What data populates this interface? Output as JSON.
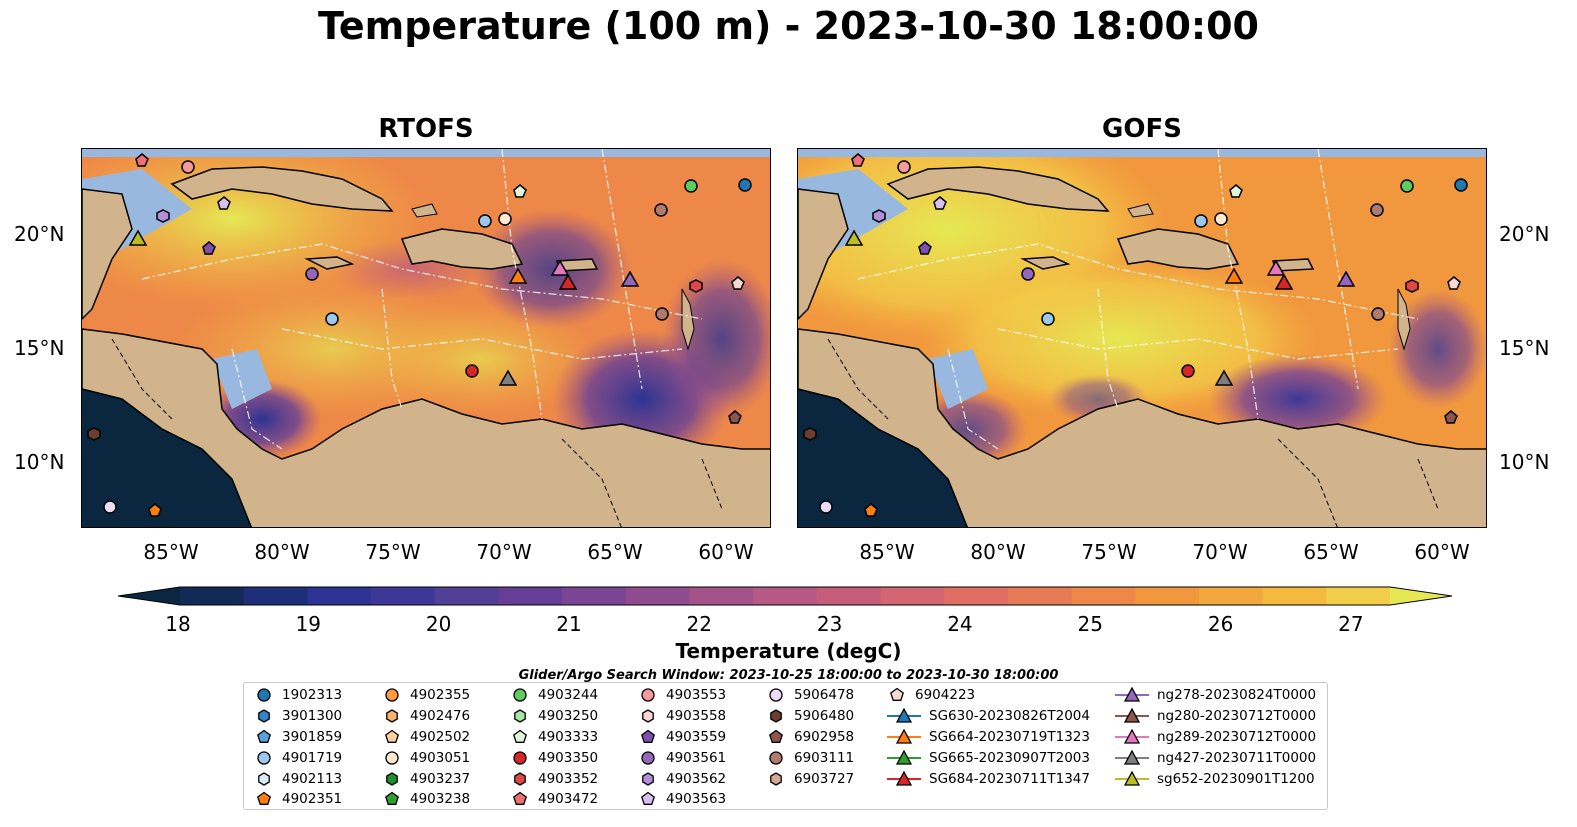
{
  "title": "Temperature (100 m) - 2023-10-30 18:00:00",
  "panels": [
    {
      "title": "RTOFS"
    },
    {
      "title": "GOFS"
    }
  ],
  "lat_labels": [
    "20°N",
    "15°N",
    "10°N"
  ],
  "lon_labels": [
    "85°W",
    "80°W",
    "75°W",
    "70°W",
    "65°W",
    "60°W"
  ],
  "colorbar": {
    "label": "Temperature (degC)",
    "ticks": [
      "18",
      "19",
      "20",
      "21",
      "22",
      "23",
      "24",
      "25",
      "26",
      "27"
    ],
    "colors": [
      "#0b2740",
      "#122a55",
      "#1e2e78",
      "#2c3392",
      "#3d3897",
      "#523f98",
      "#663e97",
      "#7a4593",
      "#8e4c8f",
      "#a3528a",
      "#b65984",
      "#c65e7b",
      "#d46671",
      "#e06e63",
      "#e77b55",
      "#ee8848",
      "#f1983f",
      "#f2a83c",
      "#f4ba3e",
      "#f3ce48",
      "#e6e853"
    ]
  },
  "search_window": "Glider/Argo Search Window: 2023-10-25 18:00:00 to 2023-10-30 18:00:00",
  "legend": {
    "columns": [
      [
        {
          "label": "1902313",
          "shape": "circle",
          "color": "#1f77b4"
        },
        {
          "label": "3901300",
          "shape": "hexagon",
          "color": "#2f86c8"
        },
        {
          "label": "3901859",
          "shape": "pentagon",
          "color": "#5aa0d6"
        },
        {
          "label": "4901719",
          "shape": "circle",
          "color": "#9cc8ee"
        },
        {
          "label": "4902113",
          "shape": "hexagon",
          "color": "#d8ecfa"
        },
        {
          "label": "4902351",
          "shape": "pentagon",
          "color": "#ff7f0e"
        }
      ],
      [
        {
          "label": "4902355",
          "shape": "circle",
          "color": "#ff9a3a"
        },
        {
          "label": "4902476",
          "shape": "hexagon",
          "color": "#ffb26a"
        },
        {
          "label": "4902502",
          "shape": "pentagon",
          "color": "#ffcfa0"
        },
        {
          "label": "4903051",
          "shape": "circle",
          "color": "#ffe9d0"
        },
        {
          "label": "4903237",
          "shape": "hexagon",
          "color": "#1e8f2a"
        },
        {
          "label": "4903238",
          "shape": "pentagon",
          "color": "#2ca02c"
        }
      ],
      [
        {
          "label": "4903244",
          "shape": "circle",
          "color": "#5fcc5f"
        },
        {
          "label": "4903250",
          "shape": "hexagon",
          "color": "#a6e6a0"
        },
        {
          "label": "4903333",
          "shape": "pentagon",
          "color": "#dff7d8"
        },
        {
          "label": "4903350",
          "shape": "circle",
          "color": "#d62728"
        },
        {
          "label": "4903352",
          "shape": "hexagon",
          "color": "#e04848"
        },
        {
          "label": "4903472",
          "shape": "pentagon",
          "color": "#ee7070"
        }
      ],
      [
        {
          "label": "4903553",
          "shape": "circle",
          "color": "#f59a9a"
        },
        {
          "label": "4903558",
          "shape": "hexagon",
          "color": "#fcd5d5"
        },
        {
          "label": "4903559",
          "shape": "pentagon",
          "color": "#7f4fb0"
        },
        {
          "label": "4903561",
          "shape": "circle",
          "color": "#9467bd"
        },
        {
          "label": "4903562",
          "shape": "hexagon",
          "color": "#b28fd8"
        },
        {
          "label": "4903563",
          "shape": "pentagon",
          "color": "#d8bff0"
        }
      ],
      [
        {
          "label": "5906478",
          "shape": "circle",
          "color": "#ecdcf8"
        },
        {
          "label": "5906480",
          "shape": "hexagon",
          "color": "#6b3e2e"
        },
        {
          "label": "6902958",
          "shape": "pentagon",
          "color": "#8c564b"
        },
        {
          "label": "6903111",
          "shape": "circle",
          "color": "#b07a6c"
        },
        {
          "label": "6903727",
          "shape": "hexagon",
          "color": "#d6a898"
        },
        {
          "label": "",
          "shape": "none",
          "color": "#ffffff"
        }
      ],
      [
        {
          "label": "6904223",
          "shape": "pentagon",
          "color": "#f6d9cf"
        },
        {
          "label": "SG630-20230826T2004",
          "shape": "triangle-line",
          "color": "#1f77b4"
        },
        {
          "label": "SG664-20230719T1323",
          "shape": "triangle-line",
          "color": "#ff7f0e"
        },
        {
          "label": "SG665-20230907T2003",
          "shape": "triangle-line",
          "color": "#2ca02c"
        },
        {
          "label": "SG684-20230711T1347",
          "shape": "triangle-line",
          "color": "#d62728"
        },
        {
          "label": "",
          "shape": "none",
          "color": "#ffffff"
        }
      ],
      [
        {
          "label": "ng278-20230824T0000",
          "shape": "triangle-line",
          "color": "#9467bd"
        },
        {
          "label": "ng280-20230712T0000",
          "shape": "triangle-line",
          "color": "#8c564b"
        },
        {
          "label": "ng289-20230712T0000",
          "shape": "triangle-line",
          "color": "#e377c2"
        },
        {
          "label": "ng427-20230711T0000",
          "shape": "triangle-line",
          "color": "#7f7f7f"
        },
        {
          "label": "sg652-20230901T1200",
          "shape": "triangle-line",
          "color": "#bcbd22"
        },
        {
          "label": "",
          "shape": "none",
          "color": "#ffffff"
        }
      ]
    ]
  },
  "map_colors": {
    "land": "#d2b48c",
    "shelf": "#99b8e0",
    "pacific": "#0b2740",
    "coast": "#000000"
  }
}
